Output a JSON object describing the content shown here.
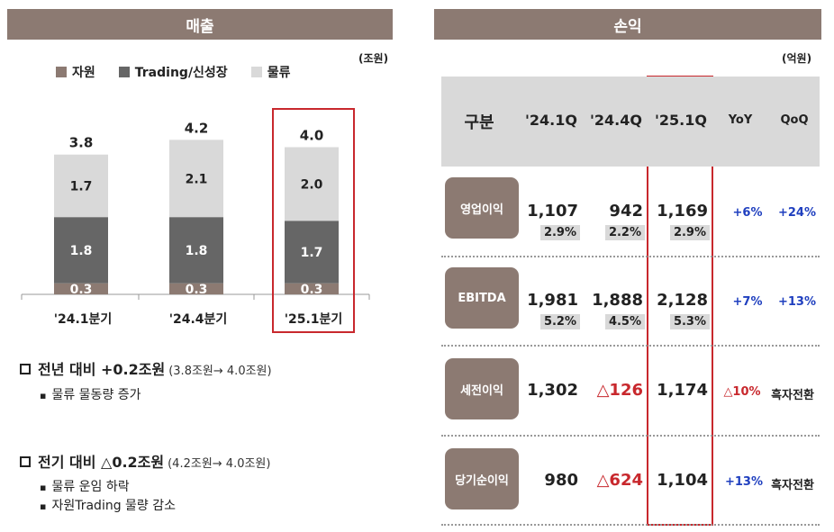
{
  "headers": {
    "left": "매출",
    "right": "손익"
  },
  "units": {
    "left": "(조원)",
    "right": "(억원)"
  },
  "colors": {
    "header": "#8c7a72",
    "resource": "#8c7a72",
    "trading": "#666666",
    "logistics": "#d9d9d9",
    "highlight": "#c8282d",
    "positive": "#1f3fbf",
    "negative": "#c8282d"
  },
  "chart_data": {
    "type": "bar",
    "stacked": true,
    "categories": [
      "'24.1분기",
      "'24.4분기",
      "'25.1분기"
    ],
    "series": [
      {
        "name": "자원",
        "values": [
          0.3,
          0.3,
          0.3
        ]
      },
      {
        "name": "Trading/신성장",
        "values": [
          1.8,
          1.8,
          1.7
        ]
      },
      {
        "name": "물류",
        "values": [
          1.7,
          2.1,
          2.0
        ]
      }
    ],
    "totals": [
      3.8,
      4.2,
      4.0
    ],
    "value_labels": [
      [
        "0.3",
        "1.8",
        "1.7"
      ],
      [
        "0.3",
        "1.8",
        "2.1"
      ],
      [
        "0.3",
        "1.7",
        "2.0"
      ]
    ],
    "total_labels": [
      "3.8",
      "4.2",
      "4.0"
    ],
    "ylim": [
      0,
      4.6
    ],
    "legend_position": "top",
    "highlight_category": 2
  },
  "bullets": [
    {
      "title": "전년 대비 +0.2조원",
      "sub": "(3.8조원→ 4.0조원)",
      "items": [
        "물류 물동량 증가"
      ]
    },
    {
      "title": "전기 대비 △0.2조원",
      "sub": "(4.2조원→ 4.0조원)",
      "items": [
        "물류 운임 하락",
        "자원Trading 물량 감소"
      ]
    }
  ],
  "table": {
    "columns": [
      "구분",
      "'24.1Q",
      "'24.4Q",
      "'25.1Q",
      "YoY",
      "QoQ"
    ],
    "rows": [
      {
        "label": "영업이익",
        "values": [
          "1,107",
          "942",
          "1,169"
        ],
        "pcts": [
          "2.9%",
          "2.2%",
          "2.9%"
        ],
        "yoy": "+6%",
        "qoq": "+24%"
      },
      {
        "label": "EBITDA",
        "values": [
          "1,981",
          "1,888",
          "2,128"
        ],
        "pcts": [
          "5.2%",
          "4.5%",
          "5.3%"
        ],
        "yoy": "+7%",
        "qoq": "+13%"
      },
      {
        "label": "세전이익",
        "values": [
          "1,302",
          "△126",
          "1,174"
        ],
        "pcts": [],
        "yoy": "△10%",
        "qoq": "흑자전환"
      },
      {
        "label": "당기순이익",
        "values": [
          "980",
          "△624",
          "1,104"
        ],
        "pcts": [],
        "yoy": "+13%",
        "qoq": "흑자전환"
      }
    ]
  }
}
